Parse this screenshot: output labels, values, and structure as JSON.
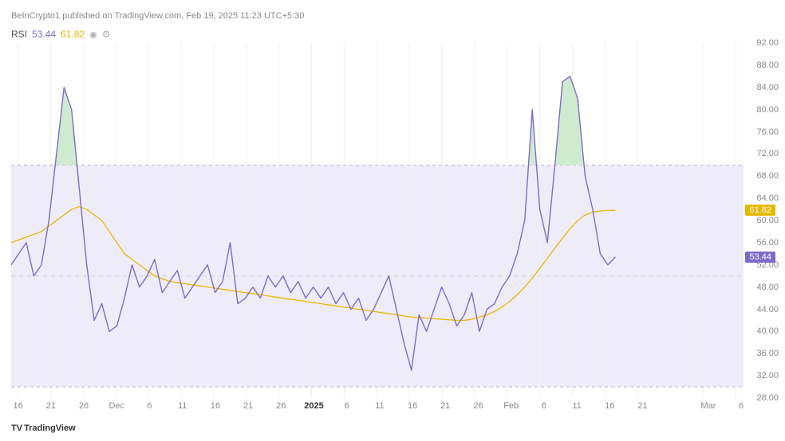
{
  "attribution": "BeInCrypto1 published on TradingView.com, Feb 19, 2025 11:23 UTC+5:30",
  "indicator": {
    "label": "RSI",
    "v1": "53.44",
    "v2": "61.82",
    "eye": "◉",
    "gear": "⚙"
  },
  "logo": {
    "mark": "TV",
    "text": "TradingView"
  },
  "chart": {
    "type": "line",
    "ylim": [
      28,
      92
    ],
    "ytick_step": 4,
    "bands": {
      "upper": 70,
      "lower": 30,
      "mid": 50
    },
    "band_fill": "#efecf9",
    "band_border": "#b9b3d9",
    "band_border_dash": "4,4",
    "mid_color": "#cccccc",
    "mid_dash": "5,5",
    "grid_vertical_color": "#f0f0f0",
    "background_color": "#ffffff",
    "overbought_fill": "#c5e8c8",
    "series": [
      {
        "name": "rsi",
        "color": "#7e6bc9",
        "width": 1.4,
        "current": 53.44,
        "label_bg": "#7e6bc9",
        "points": [
          52,
          54,
          56,
          50,
          52,
          60,
          72,
          84,
          80,
          66,
          52,
          42,
          45,
          40,
          41,
          46,
          52,
          48,
          50,
          53,
          47,
          49,
          51,
          46,
          48,
          50,
          52,
          47,
          49,
          56,
          45,
          46,
          48,
          46,
          50,
          48,
          50,
          47,
          49,
          46,
          48,
          46,
          48,
          45,
          47,
          44,
          46,
          42,
          44,
          47,
          50,
          44,
          38,
          33,
          43,
          40,
          44,
          48,
          45,
          41,
          43,
          47,
          40,
          44,
          45,
          48,
          50,
          54,
          60,
          80,
          62,
          56,
          70,
          85,
          86,
          82,
          68,
          62,
          54,
          52,
          53.44
        ]
      },
      {
        "name": "rsi-ma",
        "color": "#e6b800",
        "width": 1.3,
        "current": 61.82,
        "label_bg": "#e6b800",
        "points": [
          56,
          56.5,
          57,
          57.5,
          58,
          59,
          60,
          61,
          62,
          62.5,
          62,
          61,
          60,
          58,
          56,
          54,
          53,
          52,
          51,
          50,
          49.5,
          49,
          48.8,
          48.6,
          48.4,
          48.2,
          48,
          47.8,
          47.6,
          47.4,
          47.2,
          47,
          46.8,
          46.6,
          46.4,
          46.2,
          46,
          45.8,
          45.6,
          45.4,
          45.2,
          45,
          44.8,
          44.6,
          44.4,
          44.2,
          44,
          43.8,
          43.6,
          43.4,
          43.2,
          43,
          42.8,
          42.6,
          42.5,
          42.4,
          42.3,
          42.2,
          42.1,
          42,
          42,
          42.2,
          42.6,
          43,
          43.6,
          44.4,
          45.4,
          46.6,
          48,
          49.6,
          51.4,
          53.2,
          55,
          56.8,
          58.5,
          60,
          61,
          61.5,
          61.7,
          61.8,
          61.82
        ]
      }
    ],
    "x_ticks": [
      {
        "pos": 0.012,
        "label": "16"
      },
      {
        "pos": 0.069,
        "label": "21"
      },
      {
        "pos": 0.126,
        "label": "26"
      },
      {
        "pos": 0.183,
        "label": "Dec"
      },
      {
        "pos": 0.24,
        "label": "6"
      },
      {
        "pos": 0.297,
        "label": "11"
      },
      {
        "pos": 0.354,
        "label": "16"
      },
      {
        "pos": 0.411,
        "label": "21"
      },
      {
        "pos": 0.468,
        "label": "26"
      },
      {
        "pos": 0.525,
        "label": "2025",
        "bold": true
      },
      {
        "pos": 0.582,
        "label": "6"
      },
      {
        "pos": 0.639,
        "label": "11"
      },
      {
        "pos": 0.696,
        "label": "16"
      },
      {
        "pos": 0.753,
        "label": "21"
      },
      {
        "pos": 0.81,
        "label": "26"
      },
      {
        "pos": 0.867,
        "label": "Feb"
      },
      {
        "pos": 0.924,
        "label": "6"
      },
      {
        "pos": 0.981,
        "label": "11"
      },
      {
        "pos": 1.038,
        "label": "16"
      },
      {
        "pos": 1.095,
        "label": "21"
      },
      {
        "pos": 1.209,
        "label": "Mar"
      },
      {
        "pos": 1.266,
        "label": "6"
      }
    ],
    "series_x_end": 0.825
  },
  "colors": {
    "v1": "#7e6bc9",
    "v2": "#e6b800"
  }
}
